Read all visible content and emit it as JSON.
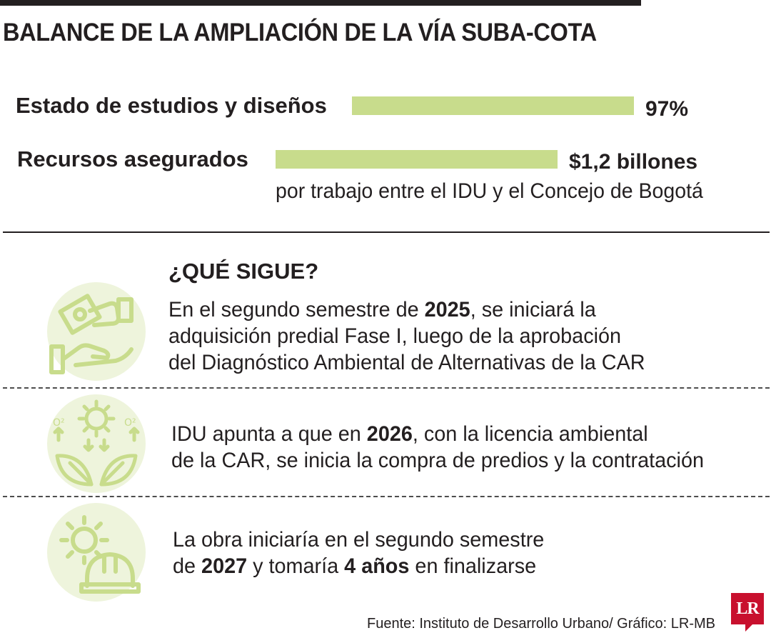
{
  "header": {
    "title": "BALANCE DE LA AMPLIACIÓN DE LA VÍA SUBA-COTA"
  },
  "summary": {
    "studies": {
      "label": "Estado de estudios y diseños",
      "value": "97%",
      "fraction": 0.97
    },
    "resources": {
      "label": "Recursos asegurados",
      "value": "$1,2 billones",
      "note": "por trabajo entre el IDU y el Concejo de Bogotá"
    }
  },
  "next": {
    "heading": "¿QUÉ SIGUE?",
    "items": [
      {
        "icon": "money-hand-icon",
        "line1_pre": "En el segundo semestre de ",
        "line1_bold": "2025",
        "line1_post": ", se iniciará la",
        "line2": "adquisición predial Fase I, luego de la aprobación",
        "line3": "del Diagnóstico Ambiental de Alternativas de la CAR"
      },
      {
        "icon": "eco-leaves-sun-icon",
        "line1_pre": "IDU apunta a que en ",
        "line1_bold": "2026",
        "line1_post": ", con la licencia ambiental",
        "line2": "de la CAR, se inicia la compra de predios y la contratación"
      },
      {
        "icon": "construction-helmet-gear-icon",
        "line1": "La obra iniciaría en el segundo semestre",
        "line2_pre": "de ",
        "line2_bold1": "2027",
        "line2_mid": " y tomaría ",
        "line2_bold2": "4 años",
        "line2_post": " en finalizarse"
      }
    ]
  },
  "footer": {
    "source": "Fuente: Instituto de Desarrollo Urbano/ Gráfico: LR-MB",
    "logo": "LR"
  },
  "colors": {
    "bar": "#c8dc8c",
    "icon_circle": "#eef4dc",
    "icon_stroke": "#c8dc8c",
    "logo": "#c8102e"
  }
}
